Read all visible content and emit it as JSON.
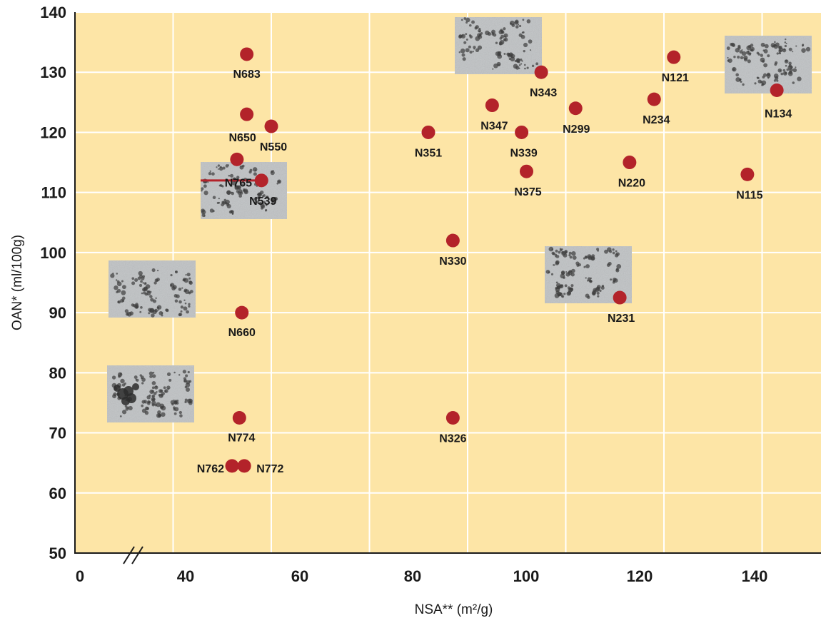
{
  "chart_data": {
    "type": "scatter",
    "xlabel": "NSA** (m²/g)",
    "ylabel": "OAN* (ml/100g)",
    "xlim": [
      0,
      152
    ],
    "ylim": [
      50,
      140
    ],
    "x_axis_break": true,
    "grid": true,
    "xticks": [
      {
        "value": 0,
        "label": "0"
      },
      {
        "value": 40,
        "label": "40"
      },
      {
        "value": 60,
        "label": "60"
      },
      {
        "value": 80,
        "label": "80"
      },
      {
        "value": 100,
        "label": "100"
      },
      {
        "value": 120,
        "label": "120"
      },
      {
        "value": 140,
        "label": "140"
      }
    ],
    "yticks": [
      50,
      60,
      70,
      80,
      90,
      100,
      110,
      120,
      130,
      140
    ],
    "points": [
      {
        "label": "N683",
        "x": 35,
        "y": 133
      },
      {
        "label": "N650",
        "x": 35,
        "y": 123
      },
      {
        "label": "N550",
        "x": 40,
        "y": 121
      },
      {
        "label": "N765",
        "x": 33,
        "y": 115.5
      },
      {
        "label": "N539",
        "x": 38,
        "y": 112
      },
      {
        "label": "N660",
        "x": 34,
        "y": 90
      },
      {
        "label": "N774",
        "x": 33.5,
        "y": 72.5
      },
      {
        "label": "N762",
        "x": 32,
        "y": 64.5
      },
      {
        "label": "N772",
        "x": 34.5,
        "y": 64.5
      },
      {
        "label": "N351",
        "x": 72,
        "y": 120
      },
      {
        "label": "N330",
        "x": 77,
        "y": 102
      },
      {
        "label": "N326",
        "x": 77,
        "y": 72.5
      },
      {
        "label": "N347",
        "x": 85,
        "y": 124.5
      },
      {
        "label": "N339",
        "x": 91,
        "y": 120
      },
      {
        "label": "N375",
        "x": 92,
        "y": 113.5
      },
      {
        "label": "N343",
        "x": 95,
        "y": 130
      },
      {
        "label": "N299",
        "x": 102,
        "y": 124
      },
      {
        "label": "N231",
        "x": 111,
        "y": 92.5
      },
      {
        "label": "N220",
        "x": 113,
        "y": 115
      },
      {
        "label": "N234",
        "x": 118,
        "y": 125.5
      },
      {
        "label": "N121",
        "x": 122,
        "y": 132.5
      },
      {
        "label": "N115",
        "x": 137,
        "y": 113
      },
      {
        "label": "N134",
        "x": 143,
        "y": 127
      }
    ],
    "colors": {
      "background": "#fde5a6",
      "grid": "#ffffff",
      "marker": "#b3232a",
      "axis": "#1a1a1a",
      "micrograph": "#bfc2c4"
    },
    "micrograph_insets": [
      {
        "near": "N539"
      },
      {
        "near": "N343"
      },
      {
        "near": "N134"
      },
      {
        "near": "N231"
      },
      {
        "near": "N660"
      },
      {
        "near": "N774"
      }
    ]
  }
}
